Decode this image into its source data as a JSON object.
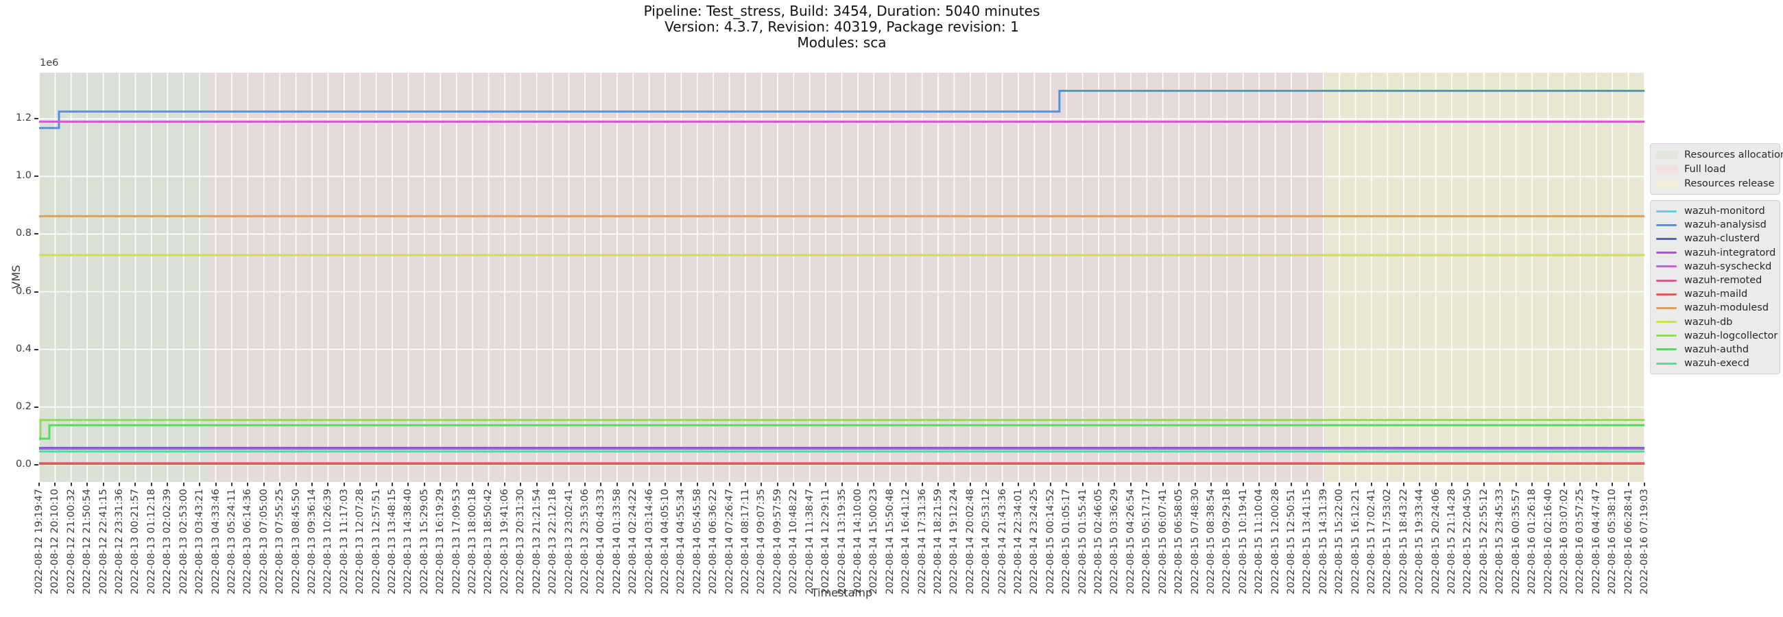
{
  "title": {
    "line1": "Pipeline: Test_stress, Build: 3454, Duration: 5040 minutes",
    "line2": "Version: 4.3.7, Revision: 40319, Package revision: 1",
    "line3": "Modules: sca"
  },
  "chart_data": {
    "type": "line",
    "title": "Pipeline: Test_stress, Build: 3454, Duration: 5040 minutes | Version: 4.3.7, Revision: 40319, Package revision: 1 | Modules: sca",
    "xlabel": "Timestamp",
    "ylabel": "VMS",
    "y_offset_text": "1e6",
    "ylim": [
      -60000,
      1360000
    ],
    "grid": true,
    "gridline_color": "#ffffff",
    "legend_position": "right",
    "y_ticks": {
      "labels": [
        "0.0",
        "0.2",
        "0.4",
        "0.6",
        "0.8",
        "1.0",
        "1.2"
      ],
      "values": [
        0,
        200000,
        400000,
        600000,
        800000,
        1000000,
        1200000
      ]
    },
    "x_ticks": [
      "2022-08-12 19:19:47",
      "2022-08-12 20:10:10",
      "2022-08-12 21:00:32",
      "2022-08-12 21:50:54",
      "2022-08-12 22:41:15",
      "2022-08-12 23:31:36",
      "2022-08-13 00:21:57",
      "2022-08-13 01:12:18",
      "2022-08-13 02:02:39",
      "2022-08-13 02:53:00",
      "2022-08-13 03:43:21",
      "2022-08-13 04:33:46",
      "2022-08-13 05:24:11",
      "2022-08-13 06:14:36",
      "2022-08-13 07:05:00",
      "2022-08-13 07:55:25",
      "2022-08-13 08:45:50",
      "2022-08-13 09:36:14",
      "2022-08-13 10:26:39",
      "2022-08-13 11:17:03",
      "2022-08-13 12:07:28",
      "2022-08-13 12:57:51",
      "2022-08-13 13:48:15",
      "2022-08-13 14:38:40",
      "2022-08-13 15:29:05",
      "2022-08-13 16:19:29",
      "2022-08-13 17:09:53",
      "2022-08-13 18:00:18",
      "2022-08-13 18:50:42",
      "2022-08-13 19:41:06",
      "2022-08-13 20:31:30",
      "2022-08-13 21:21:54",
      "2022-08-13 22:12:18",
      "2022-08-13 23:02:41",
      "2022-08-13 23:53:06",
      "2022-08-14 00:43:33",
      "2022-08-14 01:33:58",
      "2022-08-14 02:24:22",
      "2022-08-14 03:14:46",
      "2022-08-14 04:05:10",
      "2022-08-14 04:55:34",
      "2022-08-14 05:45:58",
      "2022-08-14 06:36:22",
      "2022-08-14 07:26:47",
      "2022-08-14 08:17:11",
      "2022-08-14 09:07:35",
      "2022-08-14 09:57:59",
      "2022-08-14 10:48:22",
      "2022-08-14 11:38:47",
      "2022-08-14 12:29:11",
      "2022-08-14 13:19:35",
      "2022-08-14 14:10:00",
      "2022-08-14 15:00:23",
      "2022-08-14 15:50:48",
      "2022-08-14 16:41:12",
      "2022-08-14 17:31:36",
      "2022-08-14 18:21:59",
      "2022-08-14 19:12:24",
      "2022-08-14 20:02:48",
      "2022-08-14 20:53:12",
      "2022-08-14 21:43:36",
      "2022-08-14 22:34:01",
      "2022-08-14 23:24:25",
      "2022-08-15 00:14:52",
      "2022-08-15 01:05:17",
      "2022-08-15 01:55:41",
      "2022-08-15 02:46:05",
      "2022-08-15 03:36:29",
      "2022-08-15 04:26:54",
      "2022-08-15 05:17:17",
      "2022-08-15 06:07:41",
      "2022-08-15 06:58:05",
      "2022-08-15 07:48:30",
      "2022-08-15 08:38:54",
      "2022-08-15 09:29:18",
      "2022-08-15 10:19:41",
      "2022-08-15 11:10:04",
      "2022-08-15 12:00:28",
      "2022-08-15 12:50:51",
      "2022-08-15 13:41:15",
      "2022-08-15 14:31:39",
      "2022-08-15 15:22:00",
      "2022-08-15 16:12:21",
      "2022-08-15 17:02:41",
      "2022-08-15 17:53:02",
      "2022-08-15 18:43:22",
      "2022-08-15 19:33:44",
      "2022-08-15 20:24:06",
      "2022-08-15 21:14:28",
      "2022-08-15 22:04:50",
      "2022-08-15 22:55:12",
      "2022-08-15 23:45:33",
      "2022-08-16 00:35:57",
      "2022-08-16 01:26:18",
      "2022-08-16 02:16:40",
      "2022-08-16 03:07:02",
      "2022-08-16 03:57:25",
      "2022-08-16 04:47:47",
      "2022-08-16 05:38:10",
      "2022-08-16 06:28:41",
      "2022-08-16 07:19:03"
    ],
    "regions": [
      {
        "label": "Resources allocation",
        "x_from": 0.0,
        "x_to": 0.105,
        "color": "#d9e1d7",
        "swatch_color": "#e0e7dd"
      },
      {
        "label": "Full load",
        "x_from": 0.105,
        "x_to": 0.801,
        "color": "#e6d9da",
        "swatch_color": "#f0e0e0"
      },
      {
        "label": "Resources release",
        "x_from": 0.801,
        "x_to": 1.0,
        "color": "#e7e7d3",
        "swatch_color": "#efefda"
      }
    ],
    "series": [
      {
        "name": "wazuh-monitord",
        "color": "#57d3db",
        "points": [
          [
            0,
            46000
          ],
          [
            1,
            46000
          ]
        ]
      },
      {
        "name": "wazuh-analysisd",
        "color": "#5791db",
        "points": [
          [
            0,
            1168000
          ],
          [
            0.0124,
            1168000
          ],
          [
            0.0124,
            1225000
          ],
          [
            0.6356,
            1225000
          ],
          [
            0.6356,
            1297000
          ],
          [
            1,
            1297000
          ]
        ]
      },
      {
        "name": "wazuh-clusterd",
        "color": "#5f57db",
        "points": [
          [
            0,
            58000
          ],
          [
            1,
            58000
          ]
        ]
      },
      {
        "name": "wazuh-integratord",
        "color": "#a157db",
        "points": [
          [
            0,
            55500
          ],
          [
            1,
            55500
          ]
        ]
      },
      {
        "name": "wazuh-syscheckd",
        "color": "#db57d3",
        "points": [
          [
            0,
            1190000
          ],
          [
            1,
            1190000
          ]
        ]
      },
      {
        "name": "wazuh-remoted",
        "color": "#db5791",
        "points": [
          [
            0,
            5000
          ],
          [
            1,
            5000
          ]
        ]
      },
      {
        "name": "wazuh-maild",
        "color": "#db5f57",
        "points": [
          [
            0,
            3000
          ],
          [
            1,
            3000
          ]
        ]
      },
      {
        "name": "wazuh-modulesd",
        "color": "#dba157",
        "points": [
          [
            0,
            862000
          ],
          [
            1,
            862000
          ]
        ]
      },
      {
        "name": "wazuh-db",
        "color": "#d3db57",
        "points": [
          [
            0,
            727000
          ],
          [
            1,
            727000
          ]
        ]
      },
      {
        "name": "wazuh-logcollector",
        "color": "#91db57",
        "points": [
          [
            0,
            88000
          ],
          [
            0.0008,
            88000
          ],
          [
            0.0008,
            155000
          ],
          [
            1,
            155000
          ]
        ]
      },
      {
        "name": "wazuh-authd",
        "color": "#57db5f",
        "points": [
          [
            0,
            90000
          ],
          [
            0.0064,
            90000
          ],
          [
            0.0064,
            137000
          ],
          [
            1,
            137000
          ]
        ]
      },
      {
        "name": "wazuh-execd",
        "color": "#57dba1",
        "points": [
          [
            0,
            45500
          ],
          [
            1,
            45500
          ]
        ]
      }
    ]
  }
}
